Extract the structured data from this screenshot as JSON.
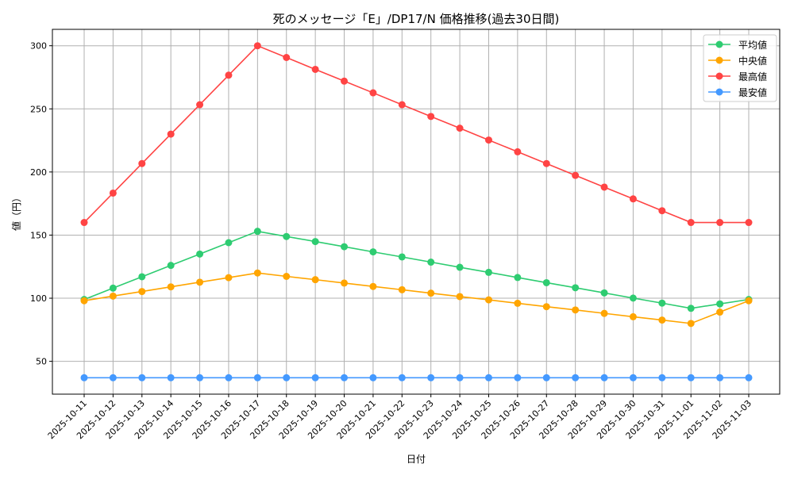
{
  "chart_data": {
    "type": "line",
    "title": "死のメッセージ「E」/DP17/N 価格推移(過去30日間)",
    "xlabel": "日付",
    "ylabel": "値（円）",
    "grid": true,
    "legend_position": "top-right",
    "ylim": [
      24,
      313
    ],
    "yticks": [
      50,
      100,
      150,
      200,
      250,
      300
    ],
    "categories": [
      "2025-10-11",
      "2025-10-12",
      "2025-10-13",
      "2025-10-14",
      "2025-10-15",
      "2025-10-16",
      "2025-10-17",
      "2025-10-18",
      "2025-10-19",
      "2025-10-20",
      "2025-10-21",
      "2025-10-22",
      "2025-10-23",
      "2025-10-24",
      "2025-10-25",
      "2025-10-26",
      "2025-10-27",
      "2025-10-28",
      "2025-10-29",
      "2025-10-30",
      "2025-10-31",
      "2025-11-01",
      "2025-11-02",
      "2025-11-03"
    ],
    "series": [
      {
        "name": "平均値",
        "color": "#2ecc71",
        "values": [
          99,
          108,
          117,
          126,
          135,
          144,
          153,
          148.9,
          144.9,
          140.8,
          136.7,
          132.7,
          128.6,
          124.5,
          120.5,
          116.4,
          112.3,
          108.3,
          104.2,
          100.1,
          96.1,
          92,
          95.5,
          99
        ]
      },
      {
        "name": "中央値",
        "color": "#ffa500",
        "values": [
          98,
          101.7,
          105.3,
          109,
          112.7,
          116.3,
          120,
          117.3,
          114.7,
          112,
          109.3,
          106.7,
          104,
          101.3,
          98.7,
          96,
          93.3,
          90.7,
          88,
          85.3,
          82.7,
          80,
          89,
          98
        ]
      },
      {
        "name": "最高値",
        "color": "#ff4444",
        "values": [
          160,
          183.3,
          206.7,
          230,
          253.3,
          276.7,
          300,
          290.7,
          281.3,
          272,
          262.7,
          253.3,
          244,
          234.7,
          225.3,
          216,
          206.7,
          197.3,
          188,
          178.7,
          169.3,
          160,
          160,
          160
        ]
      },
      {
        "name": "最安値",
        "color": "#4499ff",
        "values": [
          37,
          37,
          37,
          37,
          37,
          37,
          37,
          37,
          37,
          37,
          37,
          37,
          37,
          37,
          37,
          37,
          37,
          37,
          37,
          37,
          37,
          37,
          37,
          37
        ]
      }
    ]
  }
}
